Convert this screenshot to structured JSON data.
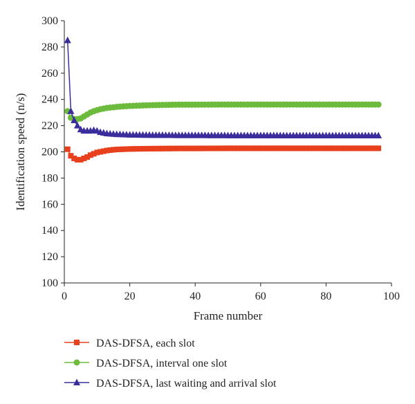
{
  "chart_data": {
    "type": "line",
    "title": "",
    "xlabel": "Frame number",
    "ylabel": "Identification speed (n/s)",
    "xlim": [
      0,
      100
    ],
    "ylim": [
      100,
      300
    ],
    "xticks": [
      0,
      20,
      40,
      60,
      80,
      100
    ],
    "yticks": [
      100,
      120,
      140,
      160,
      180,
      200,
      220,
      240,
      260,
      280,
      300
    ],
    "grid": false,
    "legend_position": "bottom",
    "series": [
      {
        "name": "DAS-DFSA, each slot",
        "color": "#e8401c",
        "marker": "square",
        "x": [
          1,
          2,
          3,
          4,
          5,
          6,
          7,
          8,
          9,
          10,
          11,
          12,
          13,
          14,
          15,
          16,
          18,
          20,
          25,
          30,
          35,
          40,
          50,
          60,
          70,
          80,
          90,
          96
        ],
        "y": [
          202,
          197,
          195,
          194,
          194,
          195,
          196,
          197.5,
          198.5,
          199.5,
          200,
          200.5,
          201,
          201.3,
          201.6,
          201.8,
          202,
          202.2,
          202.4,
          202.5,
          202.6,
          202.6,
          202.7,
          202.7,
          202.7,
          202.7,
          202.7,
          202.7
        ]
      },
      {
        "name": "DAS-DFSA, interval one slot",
        "color": "#6cbb3c",
        "marker": "circle",
        "x": [
          1,
          2,
          3,
          4,
          5,
          6,
          7,
          8,
          9,
          10,
          11,
          12,
          13,
          14,
          15,
          16,
          18,
          20,
          25,
          30,
          35,
          40,
          50,
          60,
          70,
          80,
          90,
          96
        ],
        "y": [
          231,
          226,
          225,
          225,
          225.5,
          227,
          228.5,
          230,
          231,
          231.8,
          232.5,
          233,
          233.5,
          233.8,
          234,
          234.3,
          234.7,
          235,
          235.5,
          235.8,
          236,
          236,
          236.1,
          236.1,
          236.1,
          236.1,
          236.1,
          236.1
        ]
      },
      {
        "name": "DAS-DFSA, last waiting and arrival slot",
        "color": "#3a2d9c",
        "marker": "triangle",
        "x": [
          1,
          2,
          3,
          4,
          5,
          6,
          7,
          8,
          9,
          10,
          11,
          12,
          13,
          14,
          15,
          16,
          18,
          20,
          25,
          30,
          35,
          40,
          50,
          60,
          70,
          80,
          90,
          96
        ],
        "y": [
          285,
          231,
          224,
          220,
          217,
          216,
          216,
          216,
          216.5,
          216,
          215,
          214.5,
          214,
          213.8,
          213.6,
          213.4,
          213.2,
          213,
          212.8,
          212.7,
          212.6,
          212.6,
          212.5,
          212.5,
          212.4,
          212.4,
          212.4,
          212.4
        ]
      }
    ]
  }
}
